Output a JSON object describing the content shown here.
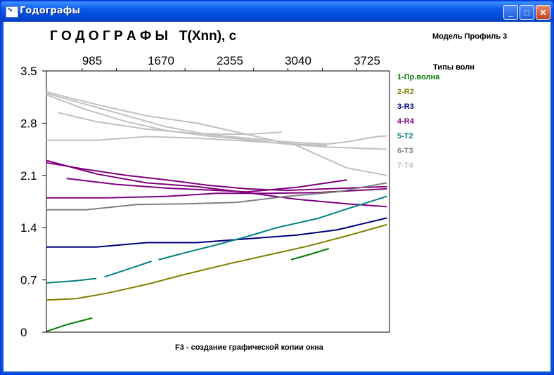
{
  "window": {
    "title": "Годографы",
    "icon": "chart-icon",
    "buttons": {
      "minimize": "_",
      "maximize": "□",
      "close": "✕"
    }
  },
  "header": {
    "title": "Г О Д О Г Р А Ф Ы   T(Xnn), с",
    "model": "Модель Профиль 3",
    "legend_title": "Типы волн"
  },
  "footer": {
    "hint": "F3 - создание графической копии окна"
  },
  "chart_data": {
    "type": "line",
    "title": "Г О Д О Г Р А Ф Ы   T(Xnn), с",
    "xlabel": "",
    "ylabel": "",
    "x_ticks": [
      "985",
      "1670",
      "2355",
      "3040",
      "3725"
    ],
    "y_ticks": [
      "3.5",
      "2.8",
      "2.1",
      "1.4",
      "0.7",
      "0"
    ],
    "xlim": [
      300,
      3725
    ],
    "ylim": [
      0,
      3.5
    ],
    "grid": false,
    "legend_position": "right",
    "series": [
      {
        "name": "1-Пр.волна",
        "color": "#008000",
        "lines": [
          [
            [
              300,
              0.01
            ],
            [
              500,
              0.1
            ],
            [
              760,
              0.19
            ]
          ],
          [
            [
              2740,
              0.97
            ],
            [
              2900,
              1.03
            ],
            [
              3120,
              1.12
            ]
          ]
        ]
      },
      {
        "name": "2-R2",
        "color": "#808000",
        "lines": [
          [
            [
              300,
              0.43
            ],
            [
              600,
              0.45
            ],
            [
              900,
              0.52
            ],
            [
              1300,
              0.64
            ],
            [
              1700,
              0.78
            ],
            [
              2100,
              0.91
            ],
            [
              2500,
              1.03
            ],
            [
              2900,
              1.15
            ],
            [
              3300,
              1.29
            ],
            [
              3700,
              1.44
            ]
          ]
        ]
      },
      {
        "name": "3-R3",
        "color": "#000080",
        "lines": [
          [
            [
              300,
              1.14
            ],
            [
              800,
              1.14
            ],
            [
              1300,
              1.2
            ],
            [
              1800,
              1.2
            ],
            [
              2300,
              1.25
            ],
            [
              2800,
              1.3
            ],
            [
              3200,
              1.37
            ],
            [
              3700,
              1.53
            ]
          ]
        ]
      },
      {
        "name": "4-R4",
        "color": "#800080",
        "lines": [
          [
            [
              300,
              2.27
            ],
            [
              700,
              2.18
            ],
            [
              1100,
              2.1
            ],
            [
              1500,
              2.04
            ],
            [
              1900,
              1.97
            ],
            [
              2300,
              1.92
            ],
            [
              2700,
              1.9
            ],
            [
              3100,
              1.92
            ],
            [
              3700,
              1.95
            ]
          ],
          [
            [
              500,
              2.06
            ],
            [
              1000,
              1.98
            ],
            [
              1500,
              1.93
            ],
            [
              2000,
              1.9
            ],
            [
              2300,
              1.88
            ],
            [
              2800,
              1.94
            ],
            [
              3300,
              2.04
            ]
          ],
          [
            [
              300,
              1.8
            ],
            [
              900,
              1.8
            ],
            [
              1500,
              1.82
            ],
            [
              2000,
              1.86
            ],
            [
              2500,
              1.86
            ],
            [
              3000,
              1.87
            ],
            [
              3700,
              1.92
            ]
          ],
          [
            [
              300,
              2.3
            ],
            [
              800,
              2.12
            ],
            [
              1300,
              2.0
            ],
            [
              1800,
              1.95
            ],
            [
              2300,
              1.87
            ],
            [
              2800,
              1.78
            ],
            [
              3300,
              1.72
            ],
            [
              3700,
              1.68
            ]
          ]
        ]
      },
      {
        "name": "5-T2",
        "color": "#008080",
        "lines": [
          [
            [
              300,
              0.66
            ],
            [
              600,
              0.69
            ],
            [
              800,
              0.72
            ]
          ],
          [
            [
              880,
              0.74
            ],
            [
              1150,
              0.86
            ],
            [
              1350,
              0.95
            ]
          ],
          [
            [
              1420,
              0.97
            ],
            [
              1700,
              1.07
            ],
            [
              2000,
              1.17
            ],
            [
              2300,
              1.28
            ],
            [
              2600,
              1.4
            ],
            [
              3000,
              1.52
            ],
            [
              3300,
              1.65
            ],
            [
              3700,
              1.82
            ]
          ]
        ]
      },
      {
        "name": "6-T3",
        "color": "#808080",
        "lines": [
          [
            [
              300,
              1.64
            ],
            [
              700,
              1.64
            ],
            [
              1200,
              1.71
            ],
            [
              1700,
              1.72
            ],
            [
              2200,
              1.74
            ],
            [
              2700,
              1.82
            ],
            [
              3200,
              1.88
            ],
            [
              3700,
              2.0
            ]
          ]
        ]
      },
      {
        "name": "7-T4",
        "color": "#c0c0c0",
        "lines": [
          [
            [
              300,
              3.2
            ],
            [
              700,
              3.05
            ],
            [
              1100,
              2.9
            ],
            [
              1500,
              2.75
            ],
            [
              1900,
              2.65
            ],
            [
              2300,
              2.6
            ],
            [
              2700,
              2.55
            ],
            [
              3100,
              2.52
            ],
            [
              3300,
              2.55
            ],
            [
              3600,
              2.62
            ],
            [
              3700,
              2.63
            ]
          ],
          [
            [
              300,
              3.22
            ],
            [
              800,
              3.05
            ],
            [
              1300,
              2.9
            ],
            [
              1800,
              2.8
            ],
            [
              2300,
              2.65
            ],
            [
              2800,
              2.5
            ],
            [
              3300,
              2.2
            ],
            [
              3700,
              2.1
            ]
          ],
          [
            [
              300,
              2.57
            ],
            [
              800,
              2.57
            ],
            [
              1300,
              2.62
            ],
            [
              1800,
              2.6
            ],
            [
              2300,
              2.56
            ],
            [
              2800,
              2.52
            ],
            [
              3100,
              2.5
            ]
          ],
          [
            [
              420,
              2.94
            ],
            [
              800,
              2.82
            ],
            [
              1300,
              2.72
            ],
            [
              1800,
              2.66
            ],
            [
              2300,
              2.65
            ],
            [
              2650,
              2.68
            ]
          ],
          [
            [
              300,
              3.18
            ],
            [
              700,
              2.98
            ],
            [
              1100,
              2.82
            ],
            [
              1500,
              2.7
            ],
            [
              1900,
              2.63
            ],
            [
              2300,
              2.58
            ],
            [
              2700,
              2.52
            ],
            [
              3100,
              2.48
            ],
            [
              3700,
              2.45
            ]
          ]
        ]
      }
    ]
  }
}
